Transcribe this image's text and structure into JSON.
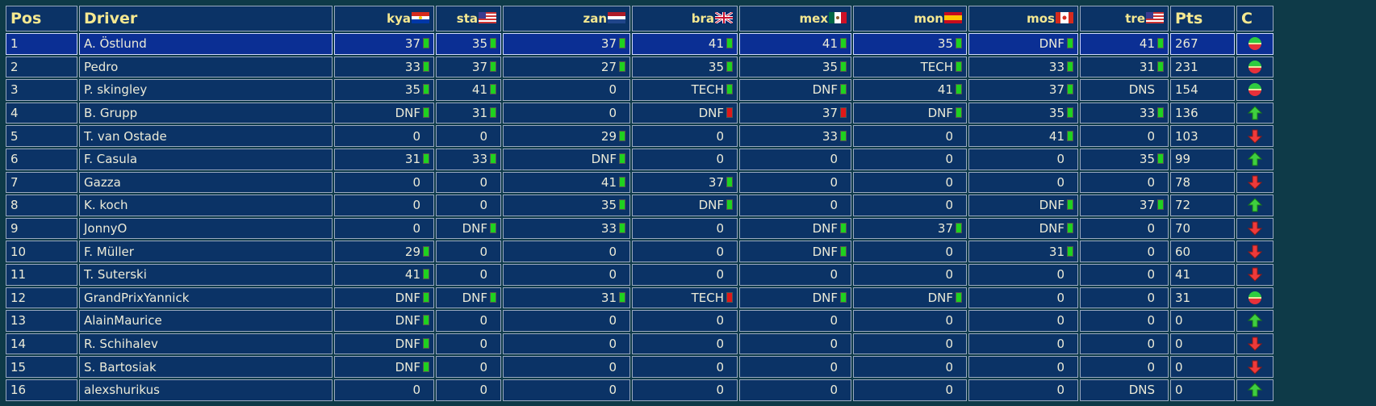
{
  "header": {
    "pos": "Pos",
    "driver": "Driver",
    "races": [
      "kya",
      "sta",
      "zan",
      "bra",
      "mex",
      "mon",
      "mos",
      "tre"
    ],
    "pts": "Pts",
    "change": "C"
  },
  "rows": [
    {
      "pos": 1,
      "driver": "A. Östlund",
      "results": [
        37,
        35,
        37,
        41,
        41,
        35,
        "DNF",
        41
      ],
      "marks": [
        "green",
        "green",
        "green",
        "green",
        "green",
        "green",
        "green",
        "green"
      ],
      "pts": 267,
      "change": "same"
    },
    {
      "pos": 2,
      "driver": "Pedro",
      "results": [
        33,
        37,
        27,
        35,
        35,
        "TECH",
        33,
        31
      ],
      "marks": [
        "green",
        "green",
        "green",
        "green",
        "green",
        "green",
        "green",
        "green"
      ],
      "pts": 231,
      "change": "same"
    },
    {
      "pos": 3,
      "driver": "P. skingley",
      "results": [
        35,
        41,
        0,
        "TECH",
        "DNF",
        41,
        37,
        "DNS"
      ],
      "marks": [
        "green",
        "green",
        null,
        "green",
        "green",
        "green",
        "green",
        null
      ],
      "pts": 154,
      "change": "same"
    },
    {
      "pos": 4,
      "driver": "B. Grupp",
      "results": [
        "DNF",
        31,
        0,
        "DNF",
        37,
        "DNF",
        35,
        33
      ],
      "marks": [
        "green",
        "green",
        null,
        "red",
        "red",
        "green",
        "green",
        "green"
      ],
      "pts": 136,
      "change": "up"
    },
    {
      "pos": 5,
      "driver": "T. van Ostade",
      "results": [
        0,
        0,
        29,
        0,
        33,
        0,
        41,
        0
      ],
      "marks": [
        null,
        null,
        "green",
        null,
        "green",
        null,
        "green",
        null
      ],
      "pts": 103,
      "change": "down"
    },
    {
      "pos": 6,
      "driver": "F. Casula",
      "results": [
        31,
        33,
        "DNF",
        0,
        0,
        0,
        0,
        35
      ],
      "marks": [
        "green",
        "green",
        "green",
        null,
        null,
        null,
        null,
        "green"
      ],
      "pts": 99,
      "change": "up"
    },
    {
      "pos": 7,
      "driver": "Gazza",
      "results": [
        0,
        0,
        41,
        37,
        0,
        0,
        0,
        0
      ],
      "marks": [
        null,
        null,
        "green",
        "green",
        null,
        null,
        null,
        null
      ],
      "pts": 78,
      "change": "down"
    },
    {
      "pos": 8,
      "driver": "K. koch",
      "results": [
        0,
        0,
        35,
        "DNF",
        0,
        0,
        "DNF",
        37
      ],
      "marks": [
        null,
        null,
        "green",
        "green",
        null,
        null,
        "green",
        "green"
      ],
      "pts": 72,
      "change": "up"
    },
    {
      "pos": 9,
      "driver": "JonnyO",
      "results": [
        0,
        "DNF",
        33,
        0,
        "DNF",
        37,
        "DNF",
        0
      ],
      "marks": [
        null,
        "green",
        "green",
        null,
        "green",
        "green",
        "green",
        null
      ],
      "pts": 70,
      "change": "down"
    },
    {
      "pos": 10,
      "driver": "F. Müller",
      "results": [
        29,
        0,
        0,
        0,
        "DNF",
        0,
        31,
        0
      ],
      "marks": [
        "green",
        null,
        null,
        null,
        "green",
        null,
        "green",
        null
      ],
      "pts": 60,
      "change": "down"
    },
    {
      "pos": 11,
      "driver": "T. Suterski",
      "results": [
        41,
        0,
        0,
        0,
        0,
        0,
        0,
        0
      ],
      "marks": [
        "green",
        null,
        null,
        null,
        null,
        null,
        null,
        null
      ],
      "pts": 41,
      "change": "down"
    },
    {
      "pos": 12,
      "driver": "GrandPrixYannick",
      "results": [
        "DNF",
        "DNF",
        31,
        "TECH",
        "DNF",
        "DNF",
        0,
        0
      ],
      "marks": [
        "green",
        "green",
        "green",
        "red",
        "green",
        "green",
        null,
        null
      ],
      "pts": 31,
      "change": "same"
    },
    {
      "pos": 13,
      "driver": "AlainMaurice",
      "results": [
        "DNF",
        0,
        0,
        0,
        0,
        0,
        0,
        0
      ],
      "marks": [
        "green",
        null,
        null,
        null,
        null,
        null,
        null,
        null
      ],
      "pts": 0,
      "change": "up"
    },
    {
      "pos": 14,
      "driver": "R. Schihalev",
      "results": [
        "DNF",
        0,
        0,
        0,
        0,
        0,
        0,
        0
      ],
      "marks": [
        "green",
        null,
        null,
        null,
        null,
        null,
        null,
        null
      ],
      "pts": 0,
      "change": "down"
    },
    {
      "pos": 15,
      "driver": "S. Bartosiak",
      "results": [
        "DNF",
        0,
        0,
        0,
        0,
        0,
        0,
        0
      ],
      "marks": [
        "green",
        null,
        null,
        null,
        null,
        null,
        null,
        null
      ],
      "pts": 0,
      "change": "down"
    },
    {
      "pos": 16,
      "driver": "alexshurikus",
      "results": [
        0,
        0,
        0,
        0,
        0,
        0,
        0,
        "DNS"
      ],
      "marks": [
        null,
        null,
        null,
        null,
        null,
        null,
        null,
        null
      ],
      "pts": 0,
      "change": "up"
    }
  ]
}
